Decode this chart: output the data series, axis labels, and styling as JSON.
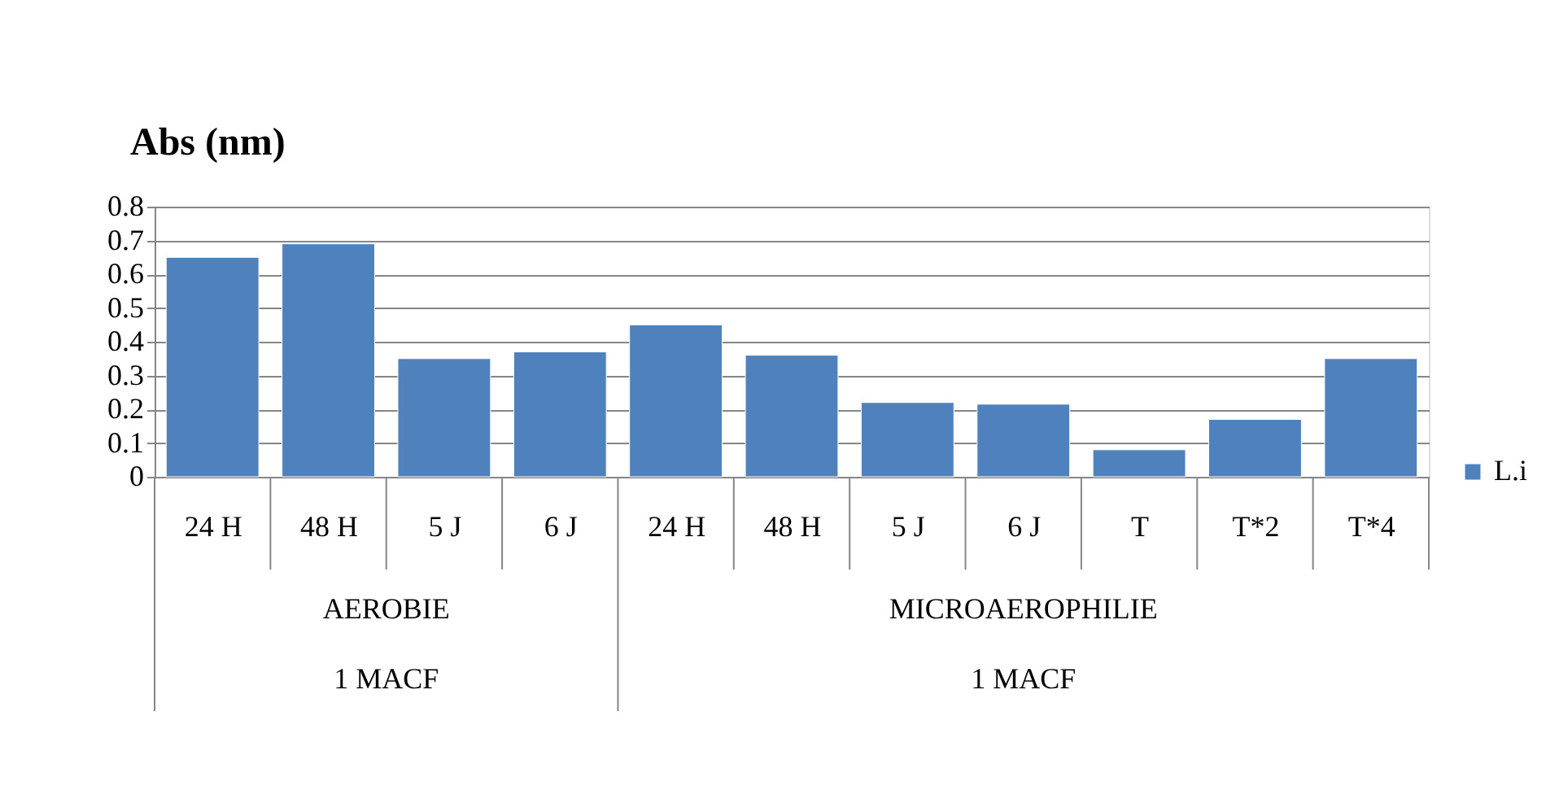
{
  "chart_data": {
    "type": "bar",
    "title": "Abs (nm)",
    "categories": [
      "24 H",
      "48 H",
      "5 J",
      "6 J",
      "24 H",
      "48 H",
      "5 J",
      "6 J",
      "T",
      "T*2",
      "T*4"
    ],
    "series": [
      {
        "name": "L.i",
        "color": "#4f81bd",
        "values": [
          0.65,
          0.69,
          0.35,
          0.37,
          0.45,
          0.36,
          0.22,
          0.215,
          0.08,
          0.17,
          0.35
        ]
      }
    ],
    "annotations": [
      "AEROBIE",
      "MICROAEROPHILIE",
      "1 MACF",
      "1 MACF"
    ],
    "ylim": [
      0,
      0.8
    ],
    "yticks": [
      0,
      0.1,
      0.2,
      0.3,
      0.4,
      0.5,
      0.6,
      0.7,
      0.8
    ],
    "grid": "y",
    "legend": "right"
  }
}
